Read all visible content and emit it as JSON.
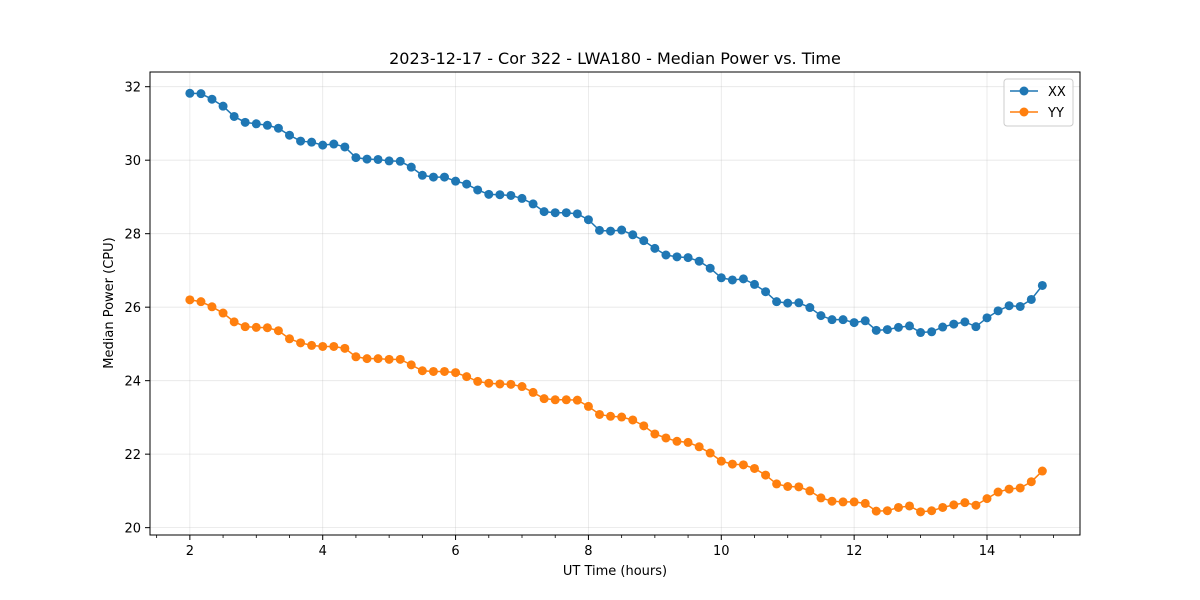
{
  "chart_data": {
    "type": "line",
    "title": "2023-12-17 - Cor 322 - LWA180 - Median Power vs. Time",
    "xlabel": "UT Time (hours)",
    "ylabel": "Median Power (CPU)",
    "xlim": [
      1.4,
      15.4
    ],
    "ylim": [
      19.8,
      32.4
    ],
    "xticks": [
      2,
      4,
      6,
      8,
      10,
      12,
      14
    ],
    "xtick_labels": [
      "2",
      "4",
      "6",
      "8",
      "10",
      "12",
      "14"
    ],
    "xminor_ticks": [
      1.5,
      2.5,
      3,
      3.5,
      4.5,
      5,
      5.5,
      6.5,
      7,
      7.5,
      8.5,
      9,
      9.5,
      10.5,
      11,
      11.5,
      12.5,
      13,
      13.5,
      14.5,
      15
    ],
    "yticks": [
      20,
      22,
      24,
      26,
      28,
      30,
      32
    ],
    "ytick_labels": [
      "20",
      "22",
      "24",
      "26",
      "28",
      "30",
      "32"
    ],
    "grid": true,
    "legend_position": "top-right",
    "series": [
      {
        "name": "XX",
        "color": "#1f77b4",
        "x": [
          2.0,
          2.167,
          2.333,
          2.5,
          2.667,
          2.833,
          3.0,
          3.167,
          3.333,
          3.5,
          3.667,
          3.833,
          4.0,
          4.167,
          4.333,
          4.5,
          4.667,
          4.833,
          5.0,
          5.167,
          5.333,
          5.5,
          5.667,
          5.833,
          6.0,
          6.167,
          6.333,
          6.5,
          6.667,
          6.833,
          7.0,
          7.167,
          7.333,
          7.5,
          7.667,
          7.833,
          8.0,
          8.167,
          8.333,
          8.5,
          8.667,
          8.833,
          9.0,
          9.167,
          9.333,
          9.5,
          9.667,
          9.833,
          10.0,
          10.167,
          10.333,
          10.5,
          10.667,
          10.833,
          11.0,
          11.167,
          11.333,
          11.5,
          11.667,
          11.833,
          12.0,
          12.167,
          12.333,
          12.5,
          12.667,
          12.833,
          13.0,
          13.167,
          13.333,
          13.5,
          13.667,
          13.833,
          14.0,
          14.167,
          14.333,
          14.5,
          14.667,
          14.833
        ],
        "values": [
          31.82,
          31.81,
          31.66,
          31.47,
          31.19,
          31.03,
          30.99,
          30.95,
          30.87,
          30.68,
          30.52,
          30.49,
          30.41,
          30.44,
          30.36,
          30.07,
          30.03,
          30.02,
          29.98,
          29.97,
          29.81,
          29.59,
          29.54,
          29.54,
          29.43,
          29.35,
          29.19,
          29.07,
          29.06,
          29.04,
          28.96,
          28.81,
          28.6,
          28.57,
          28.57,
          28.54,
          28.38,
          28.09,
          28.07,
          28.1,
          27.97,
          27.81,
          27.6,
          27.42,
          27.37,
          27.35,
          27.25,
          27.06,
          26.8,
          26.74,
          26.77,
          26.62,
          26.42,
          26.15,
          26.11,
          26.12,
          25.99,
          25.77,
          25.66,
          25.66,
          25.58,
          25.63,
          25.37,
          25.39,
          25.45,
          25.49,
          25.31,
          25.33,
          25.46,
          25.54,
          25.6,
          25.47,
          25.71,
          25.9,
          26.04,
          26.02,
          26.21,
          26.59
        ]
      },
      {
        "name": "YY",
        "color": "#ff7f0e",
        "x": [
          2.0,
          2.167,
          2.333,
          2.5,
          2.667,
          2.833,
          3.0,
          3.167,
          3.333,
          3.5,
          3.667,
          3.833,
          4.0,
          4.167,
          4.333,
          4.5,
          4.667,
          4.833,
          5.0,
          5.167,
          5.333,
          5.5,
          5.667,
          5.833,
          6.0,
          6.167,
          6.333,
          6.5,
          6.667,
          6.833,
          7.0,
          7.167,
          7.333,
          7.5,
          7.667,
          7.833,
          8.0,
          8.167,
          8.333,
          8.5,
          8.667,
          8.833,
          9.0,
          9.167,
          9.333,
          9.5,
          9.667,
          9.833,
          10.0,
          10.167,
          10.333,
          10.5,
          10.667,
          10.833,
          11.0,
          11.167,
          11.333,
          11.5,
          11.667,
          11.833,
          12.0,
          12.167,
          12.333,
          12.5,
          12.667,
          12.833,
          13.0,
          13.167,
          13.333,
          13.5,
          13.667,
          13.833,
          14.0,
          14.167,
          14.333,
          14.5,
          14.667,
          14.833
        ],
        "values": [
          26.2,
          26.15,
          26.01,
          25.84,
          25.6,
          25.47,
          25.45,
          25.44,
          25.36,
          25.14,
          25.03,
          24.96,
          24.93,
          24.93,
          24.88,
          24.65,
          24.6,
          24.6,
          24.58,
          24.58,
          24.43,
          24.27,
          24.25,
          24.25,
          24.22,
          24.11,
          23.98,
          23.93,
          23.91,
          23.9,
          23.84,
          23.68,
          23.51,
          23.48,
          23.48,
          23.47,
          23.3,
          23.08,
          23.03,
          23.01,
          22.93,
          22.77,
          22.55,
          22.44,
          22.35,
          22.32,
          22.2,
          22.03,
          21.81,
          21.73,
          21.71,
          21.61,
          21.43,
          21.19,
          21.12,
          21.11,
          21.0,
          20.81,
          20.72,
          20.7,
          20.7,
          20.66,
          20.45,
          20.46,
          20.55,
          20.59,
          20.43,
          20.46,
          20.55,
          20.62,
          20.68,
          20.61,
          20.79,
          20.97,
          21.05,
          21.08,
          21.25,
          21.54
        ]
      }
    ]
  }
}
